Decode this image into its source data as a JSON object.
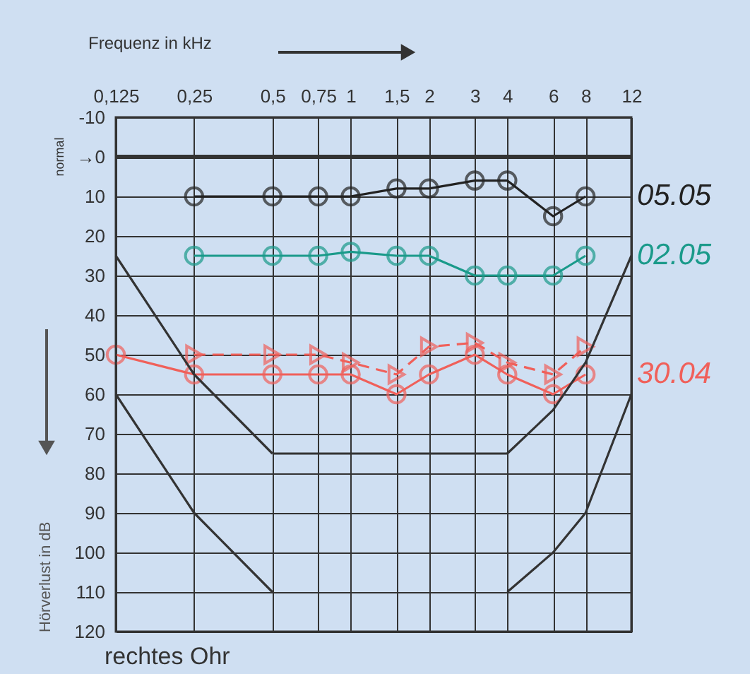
{
  "chart_data": {
    "type": "line",
    "xlabel": "Frequenz in kHz",
    "ylabel": "Hörverlust in dB",
    "annotations": [
      "normal",
      "rechtes Ohr"
    ],
    "log": "x",
    "xlim": [
      0.125,
      12
    ],
    "xticks": [
      {
        "value": 0.125,
        "label": "0,125"
      },
      {
        "value": 0.25,
        "label": "0,25"
      },
      {
        "value": 0.5,
        "label": "0,5"
      },
      {
        "value": 0.75,
        "label": "0,75"
      },
      1,
      {
        "value": 1.5,
        "label": "1,5"
      },
      2,
      3,
      4,
      6,
      8,
      12
    ],
    "ylim": [
      120,
      -10
    ],
    "yticks": [
      -10,
      {
        "value": 0,
        "label": "→0"
      },
      10,
      20,
      30,
      40,
      50,
      60,
      70,
      80,
      90,
      100,
      110,
      120
    ],
    "grid": true,
    "ref_lines": [
      {
        "axis": "y",
        "value": 0,
        "color": "#333333"
      }
    ],
    "series": [
      {
        "name": "05.05",
        "color": "#222222",
        "marker": "circle",
        "line_style": "solid",
        "x": [
          0.25,
          0.5,
          0.75,
          1,
          1.5,
          2,
          3,
          4,
          6,
          8
        ],
        "values": [
          10,
          10,
          10,
          10,
          8,
          8,
          6,
          6,
          15,
          10
        ]
      },
      {
        "name": "02.05",
        "color": "#1a9a8a",
        "marker": "circle",
        "line_style": "solid",
        "x": [
          0.25,
          0.5,
          0.75,
          1,
          1.5,
          2,
          3,
          4,
          6,
          8
        ],
        "values": [
          25,
          25,
          25,
          24,
          25,
          25,
          30,
          30,
          30,
          25
        ]
      },
      {
        "name": "30.04",
        "color": "#f0605a",
        "marker": "circle",
        "line_style": "solid",
        "x": [
          0.125,
          0.25,
          0.5,
          0.75,
          1,
          1.5,
          2,
          3,
          4,
          6,
          8
        ],
        "values": [
          50,
          55,
          55,
          55,
          55,
          60,
          55,
          50,
          55,
          60,
          55
        ]
      },
      {
        "color": "#f0605a",
        "marker": "triangle",
        "line_style": "dashed",
        "x": [
          0.25,
          0.5,
          0.75,
          1,
          1.5,
          2,
          3,
          4,
          6,
          8
        ],
        "values": [
          50,
          50,
          50,
          52,
          55,
          48,
          47,
          52,
          55,
          48
        ]
      },
      {
        "color": "#333333",
        "marker": "none",
        "line_style": "solid",
        "x": [
          0.125,
          0.25,
          0.5
        ],
        "values": [
          25,
          55,
          75
        ]
      },
      {
        "color": "#333333",
        "marker": "none",
        "line_style": "solid",
        "x": [
          0.5,
          4
        ],
        "values": [
          75,
          75
        ]
      },
      {
        "color": "#333333",
        "marker": "none",
        "line_style": "solid",
        "x": [
          4,
          6,
          8,
          12
        ],
        "values": [
          75,
          64,
          52,
          25
        ]
      },
      {
        "color": "#333333",
        "marker": "none",
        "line_style": "solid",
        "x": [
          0.125,
          0.25,
          0.5
        ],
        "values": [
          60,
          90,
          110
        ]
      },
      {
        "color": "#333333",
        "marker": "none",
        "line_style": "solid",
        "x": [
          4,
          6,
          8,
          12
        ],
        "values": [
          110,
          100,
          90,
          60
        ]
      }
    ]
  }
}
